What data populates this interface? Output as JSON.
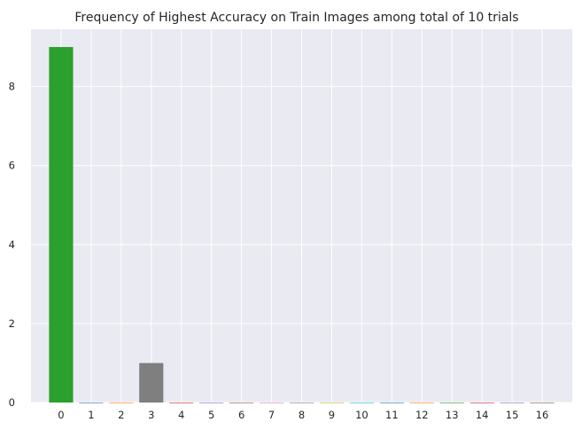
{
  "chart_data": {
    "type": "bar",
    "title": "Frequency of Highest Accuracy on Train Images among total of 10 trials",
    "xlabel": "",
    "ylabel": "",
    "categories": [
      "0",
      "1",
      "2",
      "3",
      "4",
      "5",
      "6",
      "7",
      "8",
      "9",
      "10",
      "11",
      "12",
      "13",
      "14",
      "15",
      "16"
    ],
    "values": [
      9,
      0,
      0,
      1,
      0,
      0,
      0,
      0,
      0,
      0,
      0,
      0,
      0,
      0,
      0,
      0,
      0
    ],
    "bar_colors": [
      "#2ca02c",
      "#1f77b4",
      "#ff7f0e",
      "#7f7f7f",
      "#d62728",
      "#9467bd",
      "#8c564b",
      "#e377c2",
      "#7f7f7f",
      "#bcbd22",
      "#17becf",
      "#1f77b4",
      "#ff7f0e",
      "#2ca02c",
      "#d62728",
      "#9467bd",
      "#8c564b"
    ],
    "ylim": [
      0,
      9.45
    ],
    "yticks": [
      0,
      2,
      4,
      6,
      8
    ],
    "xlim": [
      -1,
      17
    ],
    "grid": true,
    "background": "#eaeaf2",
    "grid_color": "#ffffff"
  }
}
